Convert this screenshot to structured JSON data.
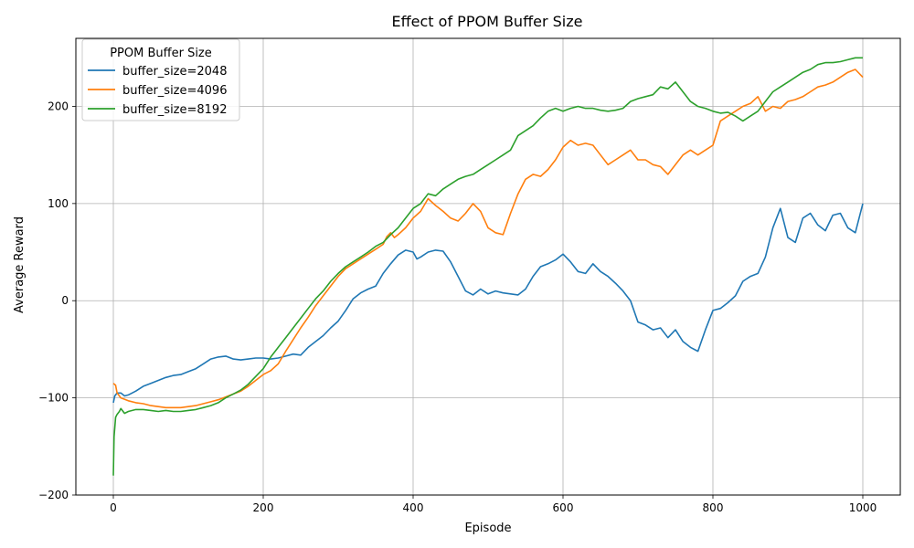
{
  "chart_data": {
    "type": "line",
    "title": "Effect of PPOM Buffer Size",
    "xlabel": "Episode",
    "ylabel": "Average Reward",
    "xlim": [
      -50,
      1050
    ],
    "ylim": [
      -200,
      270
    ],
    "xticks": [
      0,
      200,
      400,
      600,
      800,
      1000
    ],
    "yticks": [
      -200,
      -100,
      0,
      100,
      200
    ],
    "xtick_labels": [
      "0",
      "200",
      "400",
      "600",
      "800",
      "1000"
    ],
    "ytick_labels": [
      "−200",
      "−100",
      "0",
      "100",
      "200"
    ],
    "grid": true,
    "legend": {
      "title": "PPOM Buffer Size",
      "position": "top-left"
    },
    "series": [
      {
        "name": "buffer_size=2048",
        "color": "#1f77b4",
        "x": [
          0,
          2,
          5,
          10,
          15,
          20,
          30,
          40,
          50,
          60,
          70,
          80,
          90,
          100,
          110,
          120,
          130,
          140,
          150,
          160,
          170,
          180,
          190,
          200,
          210,
          220,
          230,
          240,
          250,
          260,
          270,
          280,
          290,
          300,
          310,
          320,
          330,
          340,
          350,
          360,
          370,
          380,
          390,
          400,
          405,
          410,
          420,
          430,
          440,
          450,
          460,
          470,
          480,
          490,
          500,
          510,
          520,
          530,
          540,
          550,
          560,
          570,
          580,
          590,
          600,
          610,
          620,
          630,
          640,
          650,
          660,
          670,
          680,
          690,
          700,
          710,
          720,
          730,
          740,
          750,
          760,
          770,
          780,
          790,
          800,
          810,
          820,
          830,
          840,
          850,
          860,
          870,
          880,
          890,
          900,
          910,
          920,
          930,
          940,
          950,
          960,
          970,
          980,
          990,
          1000
        ],
        "y": [
          -105,
          -98,
          -95,
          -95,
          -98,
          -97,
          -93,
          -88,
          -85,
          -82,
          -79,
          -77,
          -76,
          -73,
          -70,
          -65,
          -60,
          -58,
          -57,
          -60,
          -61,
          -60,
          -59,
          -59,
          -60,
          -59,
          -57,
          -55,
          -56,
          -48,
          -42,
          -36,
          -28,
          -21,
          -10,
          2,
          8,
          12,
          15,
          28,
          38,
          47,
          52,
          50,
          43,
          45,
          50,
          52,
          51,
          40,
          25,
          10,
          6,
          12,
          7,
          10,
          8,
          7,
          6,
          12,
          25,
          35,
          38,
          42,
          48,
          40,
          30,
          28,
          38,
          30,
          25,
          18,
          10,
          0,
          -22,
          -25,
          -30,
          -28,
          -38,
          -30,
          -42,
          -48,
          -52,
          -30,
          -10,
          -8,
          -2,
          5,
          20,
          25,
          28,
          45,
          75,
          95,
          65,
          60,
          85,
          90,
          78,
          72,
          88,
          90,
          75,
          70,
          100
        ]
      },
      {
        "name": "buffer_size=4096",
        "color": "#ff7f0e",
        "x": [
          0,
          3,
          5,
          10,
          20,
          30,
          40,
          50,
          60,
          70,
          80,
          90,
          100,
          110,
          120,
          130,
          140,
          150,
          160,
          170,
          180,
          190,
          200,
          210,
          220,
          230,
          240,
          250,
          260,
          270,
          280,
          290,
          300,
          310,
          320,
          330,
          340,
          350,
          360,
          365,
          370,
          375,
          380,
          390,
          400,
          410,
          420,
          430,
          440,
          450,
          460,
          470,
          480,
          490,
          500,
          510,
          520,
          530,
          540,
          550,
          560,
          570,
          580,
          590,
          600,
          610,
          620,
          630,
          640,
          650,
          660,
          670,
          680,
          690,
          700,
          710,
          720,
          730,
          740,
          750,
          760,
          770,
          780,
          790,
          800,
          810,
          820,
          830,
          840,
          850,
          860,
          870,
          880,
          890,
          900,
          910,
          920,
          930,
          940,
          950,
          960,
          970,
          980,
          990,
          1000
        ],
        "y": [
          -85,
          -87,
          -95,
          -100,
          -103,
          -105,
          -106,
          -108,
          -109,
          -110,
          -110,
          -110,
          -109,
          -108,
          -106,
          -104,
          -102,
          -99,
          -96,
          -93,
          -88,
          -82,
          -76,
          -72,
          -65,
          -52,
          -40,
          -28,
          -17,
          -5,
          5,
          15,
          25,
          33,
          38,
          43,
          48,
          53,
          58,
          66,
          70,
          65,
          68,
          75,
          85,
          92,
          105,
          98,
          92,
          85,
          82,
          90,
          100,
          92,
          75,
          70,
          68,
          90,
          110,
          125,
          130,
          128,
          135,
          145,
          158,
          165,
          160,
          162,
          160,
          150,
          140,
          145,
          150,
          155,
          145,
          145,
          140,
          138,
          130,
          140,
          150,
          155,
          150,
          155,
          160,
          185,
          190,
          195,
          200,
          203,
          210,
          195,
          200,
          198,
          205,
          207,
          210,
          215,
          220,
          222,
          225,
          230,
          235,
          238,
          230
        ]
      },
      {
        "name": "buffer_size=8192",
        "color": "#2ca02c",
        "x": [
          0,
          1,
          3,
          5,
          8,
          10,
          15,
          20,
          30,
          40,
          50,
          60,
          70,
          80,
          90,
          100,
          110,
          120,
          130,
          140,
          150,
          160,
          170,
          180,
          190,
          200,
          210,
          220,
          230,
          240,
          250,
          260,
          270,
          280,
          290,
          300,
          310,
          320,
          330,
          340,
          350,
          360,
          370,
          380,
          390,
          400,
          410,
          420,
          430,
          440,
          450,
          460,
          470,
          480,
          490,
          500,
          510,
          520,
          530,
          540,
          550,
          560,
          570,
          580,
          590,
          600,
          610,
          620,
          630,
          640,
          650,
          660,
          670,
          680,
          690,
          700,
          710,
          720,
          730,
          740,
          750,
          760,
          770,
          780,
          790,
          800,
          810,
          820,
          830,
          840,
          850,
          860,
          870,
          880,
          890,
          900,
          910,
          920,
          930,
          940,
          950,
          960,
          970,
          980,
          990,
          1000
        ],
        "y": [
          -180,
          -140,
          -120,
          -117,
          -114,
          -111,
          -116,
          -114,
          -112,
          -112,
          -113,
          -114,
          -113,
          -114,
          -114,
          -113,
          -112,
          -110,
          -108,
          -105,
          -100,
          -96,
          -92,
          -86,
          -78,
          -70,
          -58,
          -48,
          -38,
          -28,
          -18,
          -8,
          2,
          10,
          20,
          28,
          35,
          40,
          45,
          50,
          56,
          60,
          68,
          75,
          85,
          95,
          100,
          110,
          108,
          115,
          120,
          125,
          128,
          130,
          135,
          140,
          145,
          150,
          155,
          170,
          175,
          180,
          188,
          195,
          198,
          195,
          198,
          200,
          198,
          198,
          196,
          195,
          196,
          198,
          205,
          208,
          210,
          212,
          220,
          218,
          225,
          215,
          205,
          200,
          198,
          195,
          193,
          194,
          190,
          185,
          190,
          195,
          205,
          215,
          220,
          225,
          230,
          235,
          238,
          243,
          245,
          245,
          246,
          248,
          250,
          250
        ]
      }
    ]
  }
}
